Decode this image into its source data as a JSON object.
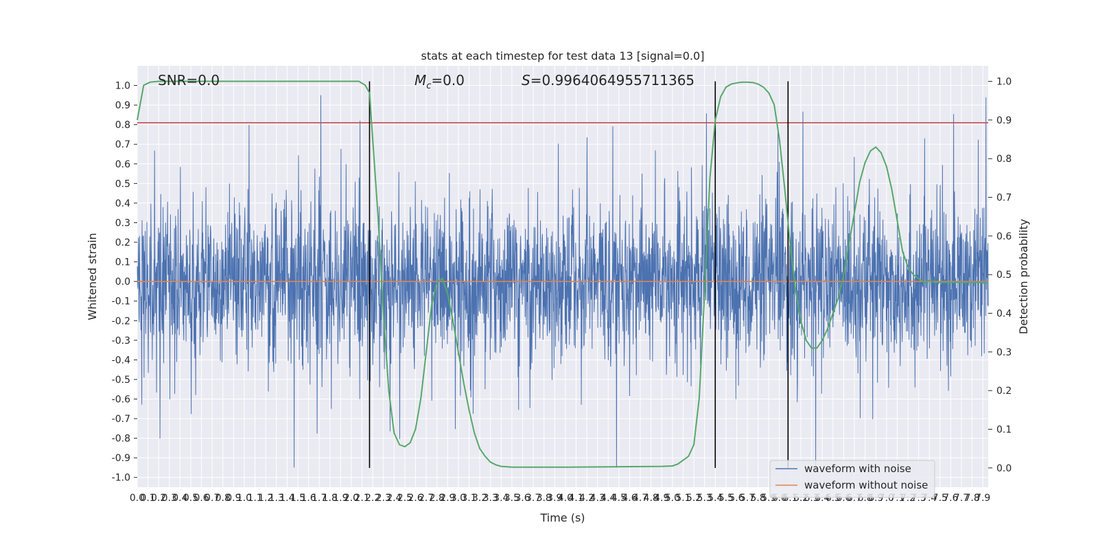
{
  "chart_data": {
    "type": "line",
    "title": "stats at each timestep for test data 13 [signal=0.0]",
    "xlabel": "Time (s)",
    "ylabel": "Whitened strain",
    "y2label": "Detection probability",
    "xlim": [
      0.0,
      7.95
    ],
    "ylim": [
      -1.05,
      1.1
    ],
    "y2lim": [
      -0.05,
      1.04
    ],
    "x_ticks": [
      "0.0",
      "0.1",
      "0.2",
      "0.3",
      "0.4",
      "0.5",
      "0.6",
      "0.7",
      "0.8",
      "0.9",
      "1.0",
      "1.1",
      "1.2",
      "1.3",
      "1.4",
      "1.5",
      "1.6",
      "1.7",
      "1.8",
      "1.9",
      "2.0",
      "2.1",
      "2.2",
      "2.3",
      "2.4",
      "2.5",
      "2.6",
      "2.7",
      "2.8",
      "2.9",
      "3.0",
      "3.1",
      "3.2",
      "3.3",
      "3.4",
      "3.5",
      "3.6",
      "3.7",
      "3.8",
      "3.9",
      "4.0",
      "4.1",
      "4.2",
      "4.3",
      "4.4",
      "4.5",
      "4.6",
      "4.7",
      "4.8",
      "4.9",
      "5.0",
      "5.1",
      "5.2",
      "5.3",
      "5.4",
      "5.5",
      "5.6",
      "5.7",
      "5.8",
      "5.9",
      "6.0",
      "6.1",
      "6.2",
      "6.3",
      "6.4",
      "6.5",
      "6.6",
      "6.7",
      "6.8",
      "6.9",
      "7.0",
      "7.1",
      "7.2",
      "7.3",
      "7.4",
      "7.5",
      "7.6",
      "7.7",
      "7.8",
      "7.9"
    ],
    "y_ticks": [
      "1.0",
      "0.9",
      "0.8",
      "0.7",
      "0.6",
      "0.5",
      "0.4",
      "0.3",
      "0.2",
      "0.1",
      "0.0",
      "-0.1",
      "-0.2",
      "-0.3",
      "-0.4",
      "-0.5",
      "-0.6",
      "-0.7",
      "-0.8",
      "-0.9",
      "-1.0"
    ],
    "y2_ticks": [
      "1.0",
      "0.9",
      "0.8",
      "0.7",
      "0.6",
      "0.5",
      "0.4",
      "0.3",
      "0.2",
      "0.1",
      "0.0"
    ],
    "annotations": {
      "snr": "SNR=0.0",
      "mc": "=0.0",
      "mc_symbol": "M",
      "mc_sub": "c",
      "s": "=0.9964064955711365",
      "s_symbol": "S"
    },
    "series": [
      {
        "name": "waveform with noise",
        "color": "#4c72b0",
        "kind": "noise",
        "seed": 13,
        "amplitude": 0.2
      },
      {
        "name": "waveform without noise",
        "color": "#dd8452",
        "kind": "constant",
        "value": 0.0
      }
    ],
    "threshold": {
      "axis": "y",
      "value": 0.81,
      "color": "#c44e52"
    },
    "vertical_lines": [
      2.17,
      5.4,
      6.08
    ],
    "probability": {
      "color": "#55a868",
      "x": [
        0.0,
        0.06,
        0.12,
        0.2,
        0.4,
        0.8,
        1.2,
        1.6,
        2.0,
        2.07,
        2.13,
        2.17,
        2.2,
        2.25,
        2.3,
        2.35,
        2.4,
        2.45,
        2.5,
        2.55,
        2.6,
        2.65,
        2.7,
        2.75,
        2.8,
        2.85,
        2.9,
        2.95,
        3.0,
        3.05,
        3.1,
        3.15,
        3.2,
        3.25,
        3.3,
        3.35,
        3.4,
        3.45,
        3.5,
        3.6,
        4.0,
        4.5,
        4.9,
        5.0,
        5.05,
        5.1,
        5.15,
        5.2,
        5.25,
        5.3,
        5.35,
        5.4,
        5.45,
        5.5,
        5.55,
        5.6,
        5.65,
        5.7,
        5.75,
        5.8,
        5.85,
        5.9,
        5.95,
        6.0,
        6.05,
        6.1,
        6.15,
        6.2,
        6.25,
        6.3,
        6.35,
        6.4,
        6.45,
        6.5,
        6.55,
        6.6,
        6.65,
        6.7,
        6.75,
        6.8,
        6.85,
        6.9,
        6.95,
        7.0,
        7.05,
        7.1,
        7.15,
        7.2,
        7.25,
        7.3,
        7.35,
        7.4,
        7.45,
        7.5,
        7.55,
        7.6,
        7.65,
        7.7,
        7.75,
        7.8,
        7.85,
        7.9,
        7.95
      ],
      "y": [
        0.9,
        0.99,
        0.998,
        1.0,
        1.0,
        1.0,
        1.0,
        1.0,
        1.0,
        1.0,
        0.99,
        0.97,
        0.85,
        0.65,
        0.4,
        0.2,
        0.09,
        0.06,
        0.055,
        0.065,
        0.1,
        0.18,
        0.3,
        0.42,
        0.48,
        0.49,
        0.45,
        0.38,
        0.3,
        0.22,
        0.15,
        0.09,
        0.05,
        0.03,
        0.015,
        0.008,
        0.004,
        0.003,
        0.002,
        0.002,
        0.002,
        0.003,
        0.004,
        0.005,
        0.01,
        0.02,
        0.03,
        0.06,
        0.18,
        0.45,
        0.75,
        0.9,
        0.96,
        0.985,
        0.993,
        0.996,
        0.998,
        0.998,
        0.997,
        0.993,
        0.985,
        0.97,
        0.94,
        0.85,
        0.72,
        0.58,
        0.46,
        0.38,
        0.33,
        0.31,
        0.31,
        0.33,
        0.36,
        0.4,
        0.44,
        0.5,
        0.58,
        0.66,
        0.74,
        0.79,
        0.82,
        0.83,
        0.815,
        0.78,
        0.72,
        0.64,
        0.56,
        0.52,
        0.5,
        0.49,
        0.48,
        0.485,
        0.48,
        0.48,
        0.48,
        0.48,
        0.48,
        0.48,
        0.48,
        0.48,
        0.48,
        0.48,
        0.48
      ]
    },
    "legend": {
      "placement": "lower-right"
    },
    "grid": true,
    "style": {
      "facecolor": "#eaeaf2",
      "gridcolor": "#ffffff"
    }
  }
}
